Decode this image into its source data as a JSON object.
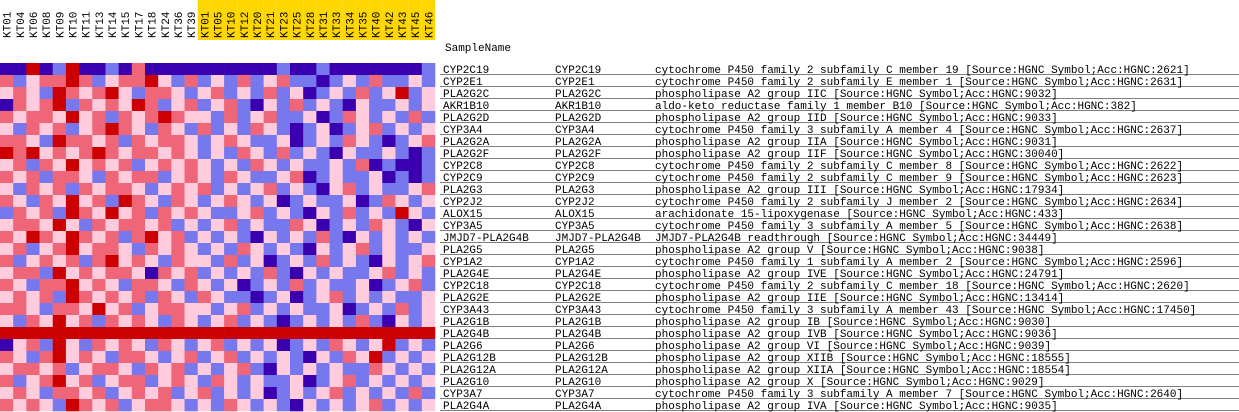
{
  "chart_data": {
    "type": "heatmap",
    "row_header": "SampleName",
    "columns": [
      "KT01",
      "KT04",
      "KT06",
      "KT08",
      "KT09",
      "KT10",
      "KT11",
      "KT13",
      "KT14",
      "KT15",
      "KT17",
      "KT18",
      "KT24",
      "KT36",
      "KT39",
      "KT01",
      "KT05",
      "KT10",
      "KT12",
      "KT20",
      "KT21",
      "KT23",
      "KT25",
      "KT28",
      "KT31",
      "KT33",
      "KT34",
      "KT35",
      "KT40",
      "KT42",
      "KT43",
      "KT45",
      "KT46"
    ],
    "column_highlight": [
      false,
      false,
      false,
      false,
      false,
      false,
      false,
      false,
      false,
      false,
      false,
      false,
      false,
      false,
      false,
      true,
      true,
      true,
      true,
      true,
      true,
      true,
      true,
      true,
      true,
      true,
      true,
      true,
      true,
      true,
      true,
      true,
      true
    ],
    "highlight_color": "#ffd700",
    "value_range": [
      -2,
      2
    ],
    "colormap": [
      "#3a00b0",
      "#7777ee",
      "#ccccff",
      "#ffccdd",
      "#ee6677",
      "#cc0000"
    ],
    "rows": [
      {
        "name": "CYP2C19",
        "symbol": "CYP2C19",
        "description": "cytochrome P450 family 2 subfamily C member 19 [Source:HGNC Symbol;Acc:HGNC:2621]",
        "values": [
          -2,
          -2,
          2,
          -2,
          -1,
          2,
          -2,
          -2,
          -1,
          -2,
          1,
          -2,
          -2,
          -2,
          -2,
          -2,
          -2,
          -2,
          -2,
          -2,
          -2,
          -1,
          -2,
          -2,
          -1,
          -2,
          -2,
          -2,
          -2,
          -2,
          -2,
          -2,
          -1
        ]
      },
      {
        "name": "CYP2E1",
        "symbol": "CYP2E1",
        "description": "cytochrome P450 family 2 subfamily E member 1 [Source:HGNC Symbol;Acc:HGNC:2631]",
        "values": [
          1,
          -1,
          0,
          1,
          1,
          2,
          1,
          -1,
          0,
          1,
          1,
          2,
          0,
          -1,
          1,
          -1,
          0,
          -1,
          1,
          -1,
          0,
          1,
          -1,
          -1,
          -2,
          -1,
          0,
          -1,
          1,
          -1,
          -1,
          0,
          -1
        ]
      },
      {
        "name": "PLA2G2C",
        "symbol": "PLA2G2C",
        "description": "phospholipase A2 group IIC [Source:HGNC Symbol;Acc:HGNC:9032]",
        "values": [
          0,
          1,
          0,
          -1,
          2,
          1,
          0,
          1,
          2,
          0,
          -1,
          1,
          1,
          0,
          -1,
          0,
          1,
          -1,
          0,
          -1,
          1,
          -1,
          0,
          -2,
          -1,
          0,
          -1,
          1,
          -1,
          0,
          2,
          -1,
          0
        ]
      },
      {
        "name": "AKR1B10",
        "symbol": "AKR1B10",
        "description": "aldo-keto reductase family 1 member B10 [Source:HGNC Symbol;Acc:HGNC:382]",
        "values": [
          -2,
          1,
          0,
          1,
          2,
          -1,
          1,
          0,
          1,
          0,
          2,
          1,
          -1,
          0,
          1,
          -1,
          0,
          1,
          -1,
          -2,
          0,
          -1,
          1,
          -1,
          0,
          -1,
          -2,
          0,
          -1,
          -1,
          0,
          -1,
          0
        ]
      },
      {
        "name": "PLA2G2D",
        "symbol": "PLA2G2D",
        "description": "phospholipase A2 group IID [Source:HGNC Symbol;Acc:HGNC:9033]",
        "values": [
          1,
          0,
          1,
          1,
          0,
          2,
          0,
          1,
          -1,
          1,
          0,
          1,
          2,
          1,
          0,
          0,
          -1,
          1,
          -1,
          0,
          1,
          -1,
          -1,
          0,
          -2,
          -1,
          1,
          0,
          -1,
          0,
          -1,
          1,
          -1
        ]
      },
      {
        "name": "CYP3A4",
        "symbol": "CYP3A4",
        "description": "cytochrome P450 family 3 subfamily A member 4 [Source:HGNC Symbol;Acc:HGNC:2637]",
        "values": [
          0,
          -1,
          1,
          0,
          1,
          -1,
          0,
          1,
          2,
          1,
          0,
          -1,
          1,
          0,
          -1,
          1,
          -1,
          0,
          -1,
          1,
          0,
          -1,
          -2,
          -1,
          0,
          -2,
          -1,
          0,
          1,
          -1,
          0,
          -1,
          0
        ]
      },
      {
        "name": "PLA2G2A",
        "symbol": "PLA2G2A",
        "description": "phospholipase A2 group IIA [Source:HGNC Symbol;Acc:HGNC:9031]",
        "values": [
          1,
          1,
          0,
          -1,
          2,
          1,
          1,
          0,
          1,
          -1,
          1,
          0,
          1,
          1,
          0,
          -1,
          0,
          1,
          0,
          -1,
          -1,
          0,
          -2,
          -1,
          0,
          -1,
          1,
          0,
          -1,
          -2,
          -1,
          0,
          1
        ]
      },
      {
        "name": "PLA2G2F",
        "symbol": "PLA2G2F",
        "description": "phospholipase A2 group IIF [Source:HGNC Symbol;Acc:HGNC:30040]",
        "values": [
          2,
          1,
          2,
          0,
          1,
          0,
          1,
          2,
          1,
          0,
          1,
          1,
          0,
          1,
          0,
          -1,
          0,
          -1,
          1,
          0,
          -1,
          1,
          -1,
          0,
          -1,
          -2,
          0,
          -1,
          -1,
          0,
          -1,
          -2,
          -1
        ]
      },
      {
        "name": "CYP2C8",
        "symbol": "CYP2C8",
        "description": "cytochrome P450 family 2 subfamily C member 8 [Source:HGNC Symbol;Acc:HGNC:2622]",
        "values": [
          0,
          1,
          -1,
          1,
          0,
          2,
          0,
          1,
          0,
          1,
          -1,
          0,
          1,
          0,
          1,
          0,
          -1,
          0,
          -1,
          1,
          0,
          -1,
          0,
          -1,
          -1,
          0,
          -1,
          1,
          -2,
          -1,
          -2,
          -2,
          -1
        ]
      },
      {
        "name": "CYP2C9",
        "symbol": "CYP2C9",
        "description": "cytochrome P450 family 2 subfamily C member 9 [Source:HGNC Symbol;Acc:HGNC:2623]",
        "values": [
          1,
          0,
          1,
          -1,
          1,
          1,
          0,
          -1,
          1,
          0,
          1,
          1,
          -1,
          0,
          1,
          0,
          -1,
          1,
          0,
          -1,
          -1,
          0,
          1,
          -2,
          -1,
          0,
          -1,
          -1,
          0,
          -2,
          -1,
          -2,
          -1
        ]
      },
      {
        "name": "PLA2G3",
        "symbol": "PLA2G3",
        "description": "phospholipase A2 group III [Source:HGNC Symbol;Acc:HGNC:17934]",
        "values": [
          0,
          -1,
          1,
          0,
          1,
          -1,
          1,
          0,
          1,
          1,
          0,
          -1,
          0,
          1,
          0,
          1,
          -1,
          0,
          -1,
          0,
          1,
          -1,
          0,
          -1,
          -2,
          0,
          1,
          -1,
          0,
          -1,
          -1,
          0,
          1
        ]
      },
      {
        "name": "CYP2J2",
        "symbol": "CYP2J2",
        "description": "cytochrome P450 family 2 subfamily J member 2 [Source:HGNC Symbol;Acc:HGNC:2634]",
        "values": [
          1,
          0,
          -1,
          1,
          0,
          2,
          0,
          1,
          -1,
          2,
          1,
          0,
          -1,
          1,
          0,
          -1,
          0,
          1,
          0,
          -1,
          0,
          -2,
          -1,
          0,
          -1,
          -1,
          0,
          -2,
          -1,
          1,
          0,
          -1,
          0
        ]
      },
      {
        "name": "ALOX15",
        "symbol": "ALOX15",
        "description": "arachidonate 15-lipoxygenase [Source:HGNC Symbol;Acc:HGNC:433]",
        "values": [
          -1,
          1,
          0,
          1,
          -1,
          2,
          1,
          0,
          2,
          0,
          1,
          -1,
          1,
          0,
          1,
          0,
          -1,
          -1,
          0,
          1,
          -1,
          0,
          -1,
          -2,
          0,
          -1,
          1,
          -1,
          0,
          -1,
          2,
          0,
          -1
        ]
      },
      {
        "name": "CYP3A5",
        "symbol": "CYP3A5",
        "description": "cytochrome P450 family 3 subfamily A member 5 [Source:HGNC Symbol;Acc:HGNC:2638]",
        "values": [
          0,
          1,
          1,
          0,
          2,
          0,
          -1,
          1,
          0,
          1,
          1,
          0,
          1,
          -1,
          0,
          -1,
          0,
          1,
          -1,
          0,
          -1,
          -1,
          1,
          0,
          -2,
          -1,
          0,
          -1,
          1,
          0,
          -1,
          -2,
          0
        ]
      },
      {
        "name": "JMJD7-PLA2G4B",
        "symbol": "JMJD7-PLA2G4B",
        "description": "JMJD7-PLA2G4B readthrough [Source:HGNC Symbol;Acc:HGNC:34449]",
        "values": [
          1,
          0,
          2,
          1,
          0,
          2,
          1,
          0,
          1,
          -1,
          1,
          2,
          0,
          1,
          -1,
          0,
          -1,
          0,
          -1,
          -2,
          0,
          -1,
          0,
          -1,
          1,
          -1,
          -2,
          0,
          -1,
          0,
          -1,
          0,
          -1
        ]
      },
      {
        "name": "PLA2G5",
        "symbol": "PLA2G5",
        "description": "phospholipase A2 group V [Source:HGNC Symbol;Acc:HGNC:9038]",
        "values": [
          0,
          1,
          -1,
          0,
          1,
          2,
          0,
          1,
          1,
          0,
          -1,
          1,
          0,
          1,
          0,
          -1,
          0,
          -1,
          1,
          0,
          -1,
          0,
          -1,
          -2,
          0,
          -1,
          0,
          1,
          -1,
          0,
          -1,
          -1,
          0
        ]
      },
      {
        "name": "CYP1A2",
        "symbol": "CYP1A2",
        "description": "cytochrome P450 family 1 subfamily A member 2 [Source:HGNC Symbol;Acc:HGNC:2596]",
        "values": [
          1,
          -1,
          0,
          1,
          0,
          1,
          -1,
          1,
          2,
          0,
          1,
          0,
          -1,
          1,
          0,
          0,
          -1,
          1,
          -1,
          0,
          -2,
          -1,
          0,
          -1,
          1,
          -1,
          0,
          -1,
          -2,
          0,
          -1,
          0,
          1
        ]
      },
      {
        "name": "PLA2G4E",
        "symbol": "PLA2G4E",
        "description": "phospholipase A2 group IVE [Source:HGNC Symbol;Acc:HGNC:24791]",
        "values": [
          0,
          1,
          1,
          -1,
          2,
          0,
          1,
          0,
          1,
          1,
          0,
          -2,
          1,
          0,
          1,
          -1,
          0,
          -1,
          0,
          -1,
          1,
          -1,
          -2,
          0,
          -1,
          0,
          -1,
          -1,
          0,
          1,
          -1,
          0,
          -1
        ]
      },
      {
        "name": "CYP2C18",
        "symbol": "CYP2C18",
        "description": "cytochrome P450 family 2 subfamily C member 18 [Source:HGNC Symbol;Acc:HGNC:2620]",
        "values": [
          1,
          0,
          -1,
          1,
          1,
          2,
          0,
          1,
          0,
          -1,
          1,
          1,
          0,
          -1,
          1,
          0,
          -1,
          0,
          -2,
          -1,
          0,
          -1,
          1,
          -1,
          0,
          -1,
          -1,
          0,
          -2,
          -1,
          0,
          1,
          -1
        ]
      },
      {
        "name": "PLA2G2E",
        "symbol": "PLA2G2E",
        "description": "phospholipase A2 group IIE [Source:HGNC Symbol;Acc:HGNC:13414]",
        "values": [
          0,
          1,
          0,
          1,
          -1,
          2,
          1,
          0,
          1,
          0,
          1,
          -1,
          1,
          0,
          -1,
          1,
          0,
          -1,
          -1,
          -2,
          -1,
          0,
          -2,
          -1,
          0,
          1,
          -1,
          0,
          -1,
          0,
          -1,
          -1,
          0
        ]
      },
      {
        "name": "CYP3A43",
        "symbol": "CYP3A43",
        "description": "cytochrome P450 family 3 subfamily A member 43 [Source:HGNC Symbol;Acc:HGNC:17450]",
        "values": [
          1,
          1,
          0,
          -1,
          1,
          1,
          0,
          2,
          0,
          1,
          -1,
          0,
          1,
          1,
          0,
          0,
          -1,
          0,
          1,
          -1,
          0,
          -1,
          0,
          -1,
          -1,
          0,
          -2,
          -1,
          0,
          -1,
          1,
          -1,
          0
        ]
      },
      {
        "name": "PLA2G1B",
        "symbol": "PLA2G1B",
        "description": "phospholipase A2 group IB [Source:HGNC Symbol;Acc:HGNC:9030]",
        "values": [
          0,
          -1,
          1,
          0,
          2,
          0,
          1,
          -1,
          1,
          0,
          1,
          0,
          -1,
          1,
          0,
          -1,
          0,
          1,
          -1,
          0,
          -1,
          -2,
          -1,
          0,
          -1,
          0,
          -1,
          1,
          -1,
          -2,
          0,
          -1,
          0
        ]
      },
      {
        "name": "PLA2G4B",
        "symbol": "PLA2G4B",
        "description": "phospholipase A2 group IVB [Source:HGNC Symbol;Acc:HGNC:9036]",
        "values": [
          2,
          2,
          2,
          2,
          2,
          2,
          2,
          2,
          2,
          2,
          2,
          2,
          2,
          2,
          2,
          2,
          2,
          2,
          2,
          2,
          2,
          2,
          2,
          2,
          2,
          2,
          2,
          2,
          2,
          2,
          2,
          2,
          2
        ]
      },
      {
        "name": "PLA2G6",
        "symbol": "PLA2G6",
        "description": "phospholipase A2 group VI [Source:HGNC Symbol;Acc:HGNC:9039]",
        "values": [
          -2,
          0,
          1,
          -1,
          2,
          0,
          -1,
          1,
          0,
          1,
          0,
          -1,
          1,
          0,
          -1,
          0,
          1,
          -1,
          0,
          -1,
          0,
          -2,
          -1,
          0,
          -1,
          1,
          0,
          -1,
          0,
          2,
          -1,
          0,
          -1
        ]
      },
      {
        "name": "PLA2G12B",
        "symbol": "PLA2G12B",
        "description": "phospholipase A2 group XIIB [Source:HGNC Symbol;Acc:HGNC:18555]",
        "values": [
          1,
          0,
          -1,
          1,
          2,
          0,
          1,
          0,
          -1,
          1,
          1,
          0,
          -1,
          0,
          1,
          -1,
          0,
          1,
          -1,
          0,
          -1,
          0,
          -1,
          -2,
          0,
          -1,
          1,
          0,
          2,
          -1,
          0,
          -1,
          0
        ]
      },
      {
        "name": "PLA2G12A",
        "symbol": "PLA2G12A",
        "description": "phospholipase A2 group XIIA [Source:HGNC Symbol;Acc:HGNC:18554]",
        "values": [
          0,
          1,
          1,
          0,
          1,
          -1,
          0,
          1,
          1,
          0,
          -1,
          1,
          0,
          1,
          -1,
          0,
          -1,
          0,
          1,
          -1,
          -2,
          0,
          -1,
          0,
          -1,
          0,
          -1,
          -1,
          1,
          0,
          -1,
          0,
          -1
        ]
      },
      {
        "name": "PLA2G10",
        "symbol": "PLA2G10",
        "description": "phospholipase A2 group X [Source:HGNC Symbol;Acc:HGNC:9029]",
        "values": [
          1,
          -1,
          0,
          1,
          2,
          0,
          1,
          -1,
          0,
          1,
          1,
          -1,
          0,
          1,
          0,
          -1,
          1,
          0,
          -1,
          0,
          -1,
          -1,
          0,
          -2,
          -1,
          0,
          1,
          -1,
          0,
          -1,
          0,
          -1,
          0
        ]
      },
      {
        "name": "CYP3A7",
        "symbol": "CYP3A7",
        "description": "cytochrome P450 family 3 subfamily A member 7 [Source:HGNC Symbol;Acc:HGNC:2640]",
        "values": [
          0,
          1,
          0,
          -1,
          1,
          1,
          0,
          1,
          -1,
          0,
          1,
          0,
          1,
          -1,
          0,
          1,
          -1,
          0,
          -1,
          0,
          -2,
          -1,
          0,
          -1,
          0,
          1,
          -1,
          0,
          -1,
          0,
          -1,
          1,
          -1
        ]
      },
      {
        "name": "PLA2G4A",
        "symbol": "PLA2G4A",
        "description": "phospholipase A2 group IVA [Source:HGNC Symbol;Acc:HGNC:9035]",
        "values": [
          1,
          0,
          1,
          0,
          -1,
          2,
          1,
          0,
          1,
          -1,
          0,
          1,
          1,
          0,
          -1,
          0,
          -1,
          1,
          0,
          -1,
          0,
          -1,
          -2,
          0,
          -1,
          0,
          -1,
          0,
          1,
          -1,
          0,
          -1,
          0
        ]
      }
    ]
  }
}
